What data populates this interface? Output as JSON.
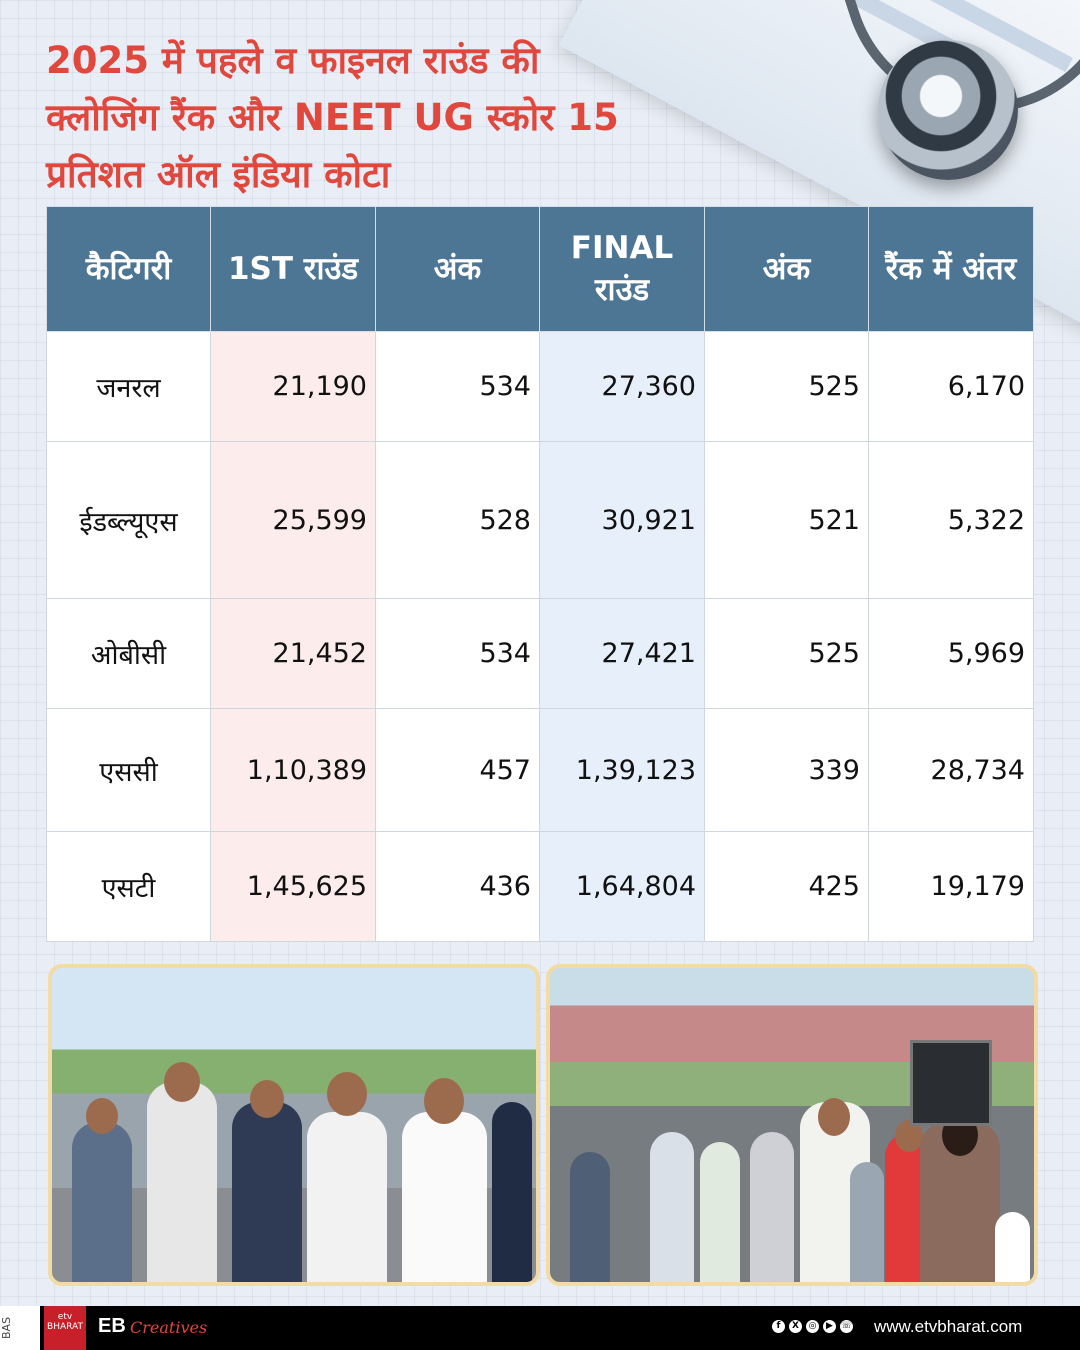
{
  "title_lines": [
    "2025 में पहले व फाइनल राउंड की",
    "क्लोजिंग रैंक और NEET UG स्कोर 15",
    "प्रतिशत ऑल इंडिया कोटा"
  ],
  "table": {
    "headers": [
      "कैटिगरी",
      "1ST राउंड",
      "अंक",
      "FINAL राउंड",
      "अंक",
      "रैंक में अंतर"
    ],
    "rows": [
      [
        "जनरल",
        "21,190",
        "534",
        "27,360",
        "525",
        "6,170"
      ],
      [
        "ईडब्ल्यूएस",
        "25,599",
        "528",
        "30,921",
        "521",
        "5,322"
      ],
      [
        "ओबीसी",
        "21,452",
        "534",
        "27,421",
        "525",
        "5,969"
      ],
      [
        "एससी",
        "1,10,389",
        "457",
        "1,39,123",
        "339",
        "28,734"
      ],
      [
        "एसटी",
        "1,45,625",
        "436",
        "1,64,804",
        "425",
        "19,179"
      ]
    ]
  },
  "colors": {
    "title": "#e0473d",
    "header_bg": "#4d7594",
    "first_round_col": "#fdecec",
    "final_round_col": "#e6effa"
  },
  "photos": [
    {
      "name": "students-queue-photo"
    },
    {
      "name": "students-campus-photo"
    }
  ],
  "footer": {
    "side_tag": "BAS",
    "logo_text": "etv BHARAT",
    "brand": "EB",
    "brand_script": "Creatives",
    "social_icons": [
      "facebook-icon",
      "x-icon",
      "instagram-icon",
      "youtube-icon",
      "whatsapp-icon"
    ],
    "website": "www.etvbharat.com"
  }
}
